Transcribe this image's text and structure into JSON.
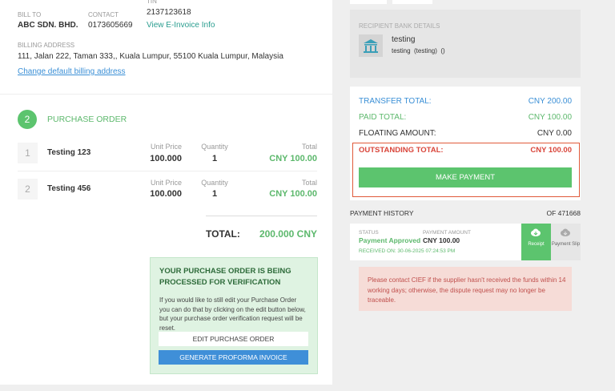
{
  "billing": {
    "tin_label": "TIN",
    "tin": "2137123618",
    "bill_to_label": "BILL TO",
    "bill_to": "ABC SDN. BHD.",
    "contact_label": "CONTACT",
    "contact": "0173605669",
    "einvoice_link": "View E-Invoice Info",
    "address_label": "BILLING ADDRESS",
    "address": "111, Jalan 222, Taman 333,, Kuala Lumpur, 55100 Kuala Lumpur, Malaysia",
    "change_link": "Change default billing address"
  },
  "purchase_order": {
    "step": "2",
    "title": "PURCHASE ORDER",
    "items": [
      {
        "index": "1",
        "name": "Testing 123",
        "unit_price_label": "Unit Price",
        "unit_price": "100.000",
        "quantity_label": "Quantity",
        "quantity": "1",
        "total_label": "Total",
        "total": "CNY 100.00"
      },
      {
        "index": "2",
        "name": "Testing 456",
        "unit_price_label": "Unit Price",
        "unit_price": "100.000",
        "quantity_label": "Quantity",
        "quantity": "1",
        "total_label": "Total",
        "total": "CNY 100.00"
      }
    ],
    "total_label": "TOTAL:",
    "total": "200.000 CNY"
  },
  "verification": {
    "title": "YOUR PURCHASE ORDER IS BEING PROCESSED FOR VERIFICATION",
    "message": "If you would like to still edit your Purchase Order you can do that by clicking on the edit button below, but your purchase order verification request will be reset.",
    "edit_button": "EDIT PURCHASE ORDER",
    "proforma_button": "GENERATE PROFORMA INVOICE"
  },
  "bank": {
    "label": "RECIPIENT BANK DETAILS",
    "name": "testing",
    "detail": "testing  (testing)  ()"
  },
  "totals": {
    "rows": [
      {
        "label": "TRANSFER TOTAL:",
        "value": "CNY 200.00"
      },
      {
        "label": "PAID TOTAL:",
        "value": "CNY 100.00"
      },
      {
        "label": "FLOATING AMOUNT:",
        "value": "CNY 0.00"
      }
    ],
    "outstanding": {
      "label": "OUTSTANDING TOTAL:",
      "value": "CNY 100.00"
    },
    "pay_button": "MAKE PAYMENT"
  },
  "history": {
    "title": "PAYMENT HISTORY",
    "reference": "OF 471668",
    "status_label": "STATUS",
    "status": "Payment Approved",
    "amount_label": "PAYMENT AMOUNT",
    "amount": "CNY 100.00",
    "received": "RECEIVED ON: 30-06-2025 07:24:53 PM",
    "receipt_button": "Receipt",
    "slip_button": "Payment Slip"
  },
  "alert": "Please contact CIEF if the supplier hasn't received the funds within 14 working days; otherwise, the dispute request may no longer be traceable."
}
